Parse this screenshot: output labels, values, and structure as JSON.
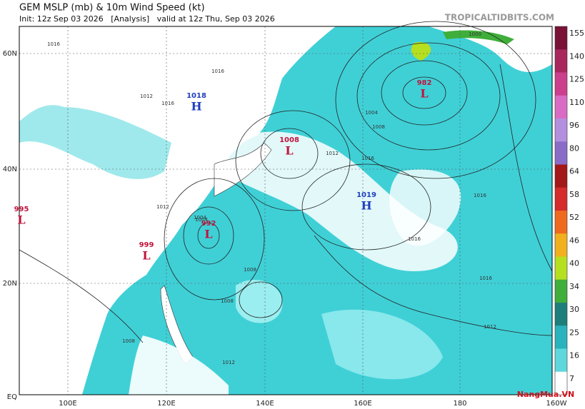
{
  "header": {
    "title": "GEM MSLP (mb) & 10m Wind Speed (kt)",
    "subtitle": "Init: 12z Sep 03 2026   [Analysis]   valid at 12z Thu, Sep 03 2026",
    "source": "TROPICALTIDBITS.COM"
  },
  "map": {
    "lat_labels": [
      "60N",
      "40N",
      "20N",
      "EQ"
    ],
    "lon_labels": [
      "100E",
      "120E",
      "140E",
      "160E",
      "180",
      "160W"
    ],
    "centers": [
      {
        "type": "H",
        "pressure": 1018,
        "color": "#1f3fbf"
      },
      {
        "type": "L",
        "pressure": 1008,
        "color": "#c0143c"
      },
      {
        "type": "H",
        "pressure": 1019,
        "color": "#1f3fbf"
      },
      {
        "type": "L",
        "pressure": 982,
        "color": "#c0143c"
      },
      {
        "type": "L",
        "pressure": 992,
        "color": "#c0143c"
      },
      {
        "type": "L",
        "pressure": 999,
        "color": "#c0143c"
      },
      {
        "type": "L",
        "pressure": 995,
        "color": "#c0143c"
      }
    ],
    "isobar_labels": [
      1016,
      1012,
      1016,
      1004,
      1008,
      1016,
      1012,
      1016,
      1004,
      1008,
      1000,
      1016,
      1008,
      1012,
      1016,
      1016,
      1012,
      1008,
      1012,
      1004
    ]
  },
  "colorbar": {
    "ticks": [
      155,
      140,
      125,
      110,
      96,
      80,
      64,
      58,
      52,
      46,
      40,
      34,
      30,
      25,
      16,
      7
    ],
    "colors": [
      "#7a1238",
      "#a8285e",
      "#cc3f8c",
      "#d96bc4",
      "#b48fe0",
      "#8a6cc8",
      "#a31818",
      "#d52b2b",
      "#ef6a1e",
      "#f2b01e",
      "#b5df1f",
      "#3fae3a",
      "#1e7f7a",
      "#2bb3bd",
      "#5ed8dc",
      "#ffffff"
    ]
  },
  "watermark": "NangMua.VN"
}
